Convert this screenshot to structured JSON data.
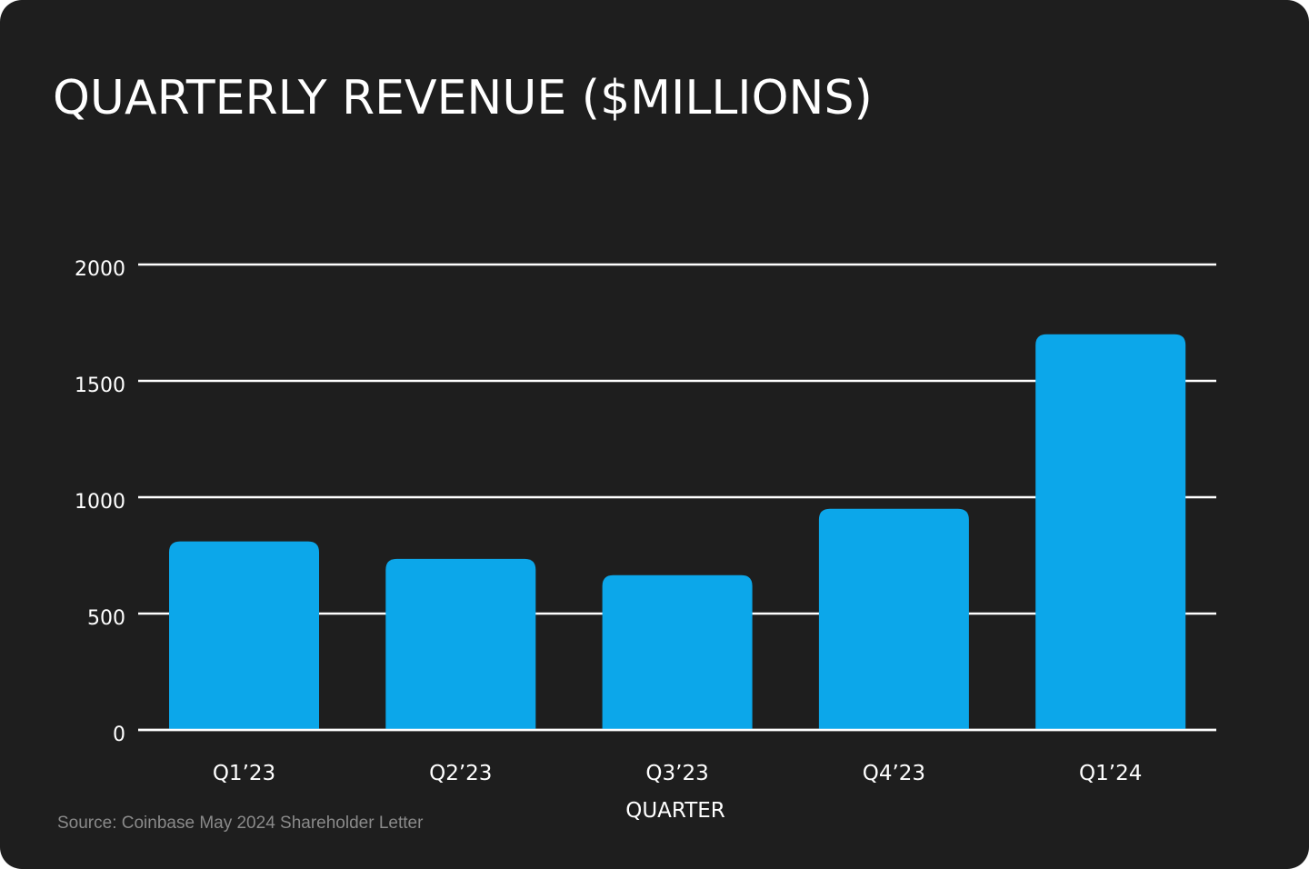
{
  "chart_data": {
    "type": "bar",
    "title": "QUARTERLY REVENUE ($MILLIONS)",
    "xlabel": "QUARTER",
    "ylabel": "",
    "categories": [
      "Q1’23",
      "Q2’23",
      "Q3’23",
      "Q4’23",
      "Q1’24"
    ],
    "values": [
      810,
      735,
      665,
      950,
      1700
    ],
    "ylim": [
      0,
      2000
    ],
    "yticks": [
      "0",
      "500",
      "1000",
      "1500",
      "2000"
    ],
    "grid": true,
    "bar_color": "#0ca7ea",
    "background": "#1e1e1e",
    "source": "Source: Coinbase May 2024 Shareholder Letter"
  }
}
